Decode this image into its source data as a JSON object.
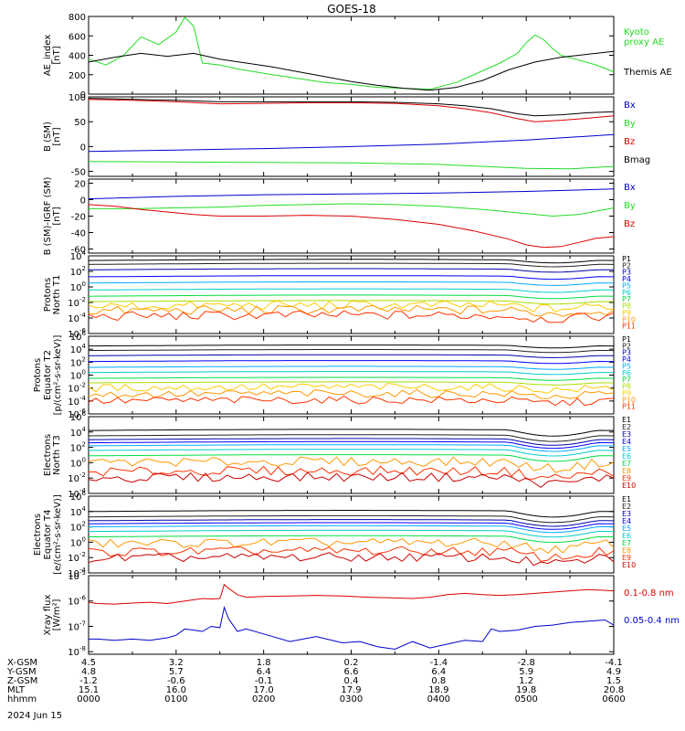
{
  "chart_data": {
    "type": "line",
    "title": "GOES-18",
    "date_label": "2024 Jun 15",
    "colors": {
      "black": "#000000",
      "green": "#22dd22",
      "blue": "#0000cc",
      "red": "#dd0000",
      "channels": [
        "#000000",
        "#222222",
        "#0000aa",
        "#0000ff",
        "#00aaff",
        "#00cccc",
        "#00dd44",
        "#aadd00",
        "#ffcc00",
        "#ff9900",
        "#ff3300",
        "#cc0000"
      ]
    },
    "x_axis": {
      "rows": [
        {
          "label": "X-GSM",
          "values": [
            "4.5",
            "3.2",
            "1.8",
            "0.2",
            "-1.4",
            "-2.8",
            "-4.1"
          ]
        },
        {
          "label": "Y-GSM",
          "values": [
            "4.8",
            "5.7",
            "6.4",
            "6.6",
            "6.4",
            "5.9",
            "4.9"
          ]
        },
        {
          "label": "Z-GSM",
          "values": [
            "-1.2",
            "-0.6",
            "-0.1",
            "0.4",
            "0.8",
            "1.2",
            "1.5"
          ]
        },
        {
          "label": "MLT",
          "values": [
            "15.1",
            "16.0",
            "17.0",
            "17.9",
            "18.9",
            "19.8",
            "20.8"
          ]
        },
        {
          "label": "hhmm",
          "values": [
            "0000",
            "0100",
            "0200",
            "0300",
            "0400",
            "0500",
            "0600"
          ]
        }
      ]
    },
    "panels": [
      {
        "id": "ae",
        "ylabel": [
          "AE_index",
          "[nT]"
        ],
        "ymin": 0,
        "ymax": 800,
        "log": false,
        "ticks": [
          {
            "v": 0,
            "t": "0"
          },
          {
            "v": 200,
            "t": "200"
          },
          {
            "v": 400,
            "t": "400"
          },
          {
            "v": 600,
            "t": "600"
          },
          {
            "v": 800,
            "t": "800"
          }
        ],
        "legend": [
          {
            "text": "Kyoto",
            "color": "#22dd22",
            "row": 0
          },
          {
            "text": "proxy AE",
            "color": "#22dd22",
            "row": 1
          },
          {
            "text": "Themis AE",
            "color": "#000000",
            "row": 4
          }
        ],
        "series": [
          {
            "name": "Kyoto proxy AE",
            "color": "#22dd22",
            "x": [
              0,
              0.2,
              0.4,
              0.6,
              0.8,
              1.0,
              1.1,
              1.2,
              1.3,
              1.5,
              1.7,
              1.9,
              2.1,
              2.4,
              2.7,
              3.0,
              3.3,
              3.6,
              3.9,
              4.2,
              4.5,
              4.7,
              4.9,
              5.0,
              5.1,
              5.2,
              5.3,
              5.4,
              5.6,
              5.8,
              6.0
            ],
            "y": [
              360,
              300,
              400,
              590,
              510,
              640,
              790,
              700,
              320,
              300,
              260,
              230,
              200,
              160,
              120,
              100,
              70,
              60,
              50,
              120,
              240,
              320,
              420,
              530,
              610,
              560,
              470,
              400,
              350,
              300,
              230
            ]
          },
          {
            "name": "Themis AE",
            "color": "#000000",
            "x": [
              0,
              0.3,
              0.6,
              0.9,
              1.2,
              1.5,
              1.8,
              2.1,
              2.4,
              2.7,
              3.0,
              3.3,
              3.6,
              3.9,
              4.2,
              4.5,
              4.8,
              5.1,
              5.4,
              5.7,
              6.0
            ],
            "y": [
              330,
              380,
              420,
              390,
              420,
              360,
              320,
              280,
              230,
              180,
              130,
              90,
              60,
              40,
              70,
              140,
              250,
              330,
              380,
              410,
              440
            ]
          }
        ]
      },
      {
        "id": "bsm",
        "ylabel": [
          "B (SM)",
          "[nT]"
        ],
        "ymin": -60,
        "ymax": 100,
        "log": false,
        "ticks": [
          {
            "v": -50,
            "t": "-50"
          },
          {
            "v": 0,
            "t": "0"
          },
          {
            "v": 50,
            "t": "50"
          },
          {
            "v": 100,
            "t": "100"
          }
        ],
        "legend": [
          {
            "text": "Bx",
            "color": "#0000cc",
            "row": 0
          },
          {
            "text": "By",
            "color": "#22dd22",
            "row": 1
          },
          {
            "text": "Bz",
            "color": "#dd0000",
            "row": 2
          },
          {
            "text": "Bmag",
            "color": "#000000",
            "row": 3
          }
        ],
        "series": [
          {
            "name": "Bmag",
            "color": "#000000",
            "x": [
              0,
              0.5,
              1.0,
              1.5,
              2.0,
              2.5,
              3.0,
              3.5,
              4.0,
              4.3,
              4.6,
              4.9,
              5.1,
              5.4,
              5.7,
              6.0
            ],
            "y": [
              97,
              95,
              93,
              90,
              90,
              90,
              90,
              89,
              86,
              82,
              76,
              66,
              62,
              64,
              68,
              70
            ]
          },
          {
            "name": "Bz",
            "color": "#dd0000",
            "x": [
              0,
              0.5,
              1.0,
              1.5,
              2.0,
              2.5,
              3.0,
              3.5,
              4.0,
              4.3,
              4.6,
              4.9,
              5.1,
              5.4,
              5.7,
              6.0
            ],
            "y": [
              95,
              93,
              90,
              86,
              87,
              88,
              88,
              87,
              82,
              76,
              68,
              56,
              50,
              53,
              57,
              62
            ]
          },
          {
            "name": "Bx",
            "color": "#0000cc",
            "x": [
              0,
              1,
              2,
              3,
              4,
              5,
              6
            ],
            "y": [
              -10,
              -7,
              -4,
              0,
              5,
              13,
              24
            ]
          },
          {
            "name": "By",
            "color": "#22dd22",
            "x": [
              0,
              1,
              2,
              3,
              4,
              4.5,
              5,
              5.5,
              6
            ],
            "y": [
              -30,
              -31,
              -32,
              -33,
              -36,
              -40,
              -44,
              -45,
              -40
            ]
          }
        ]
      },
      {
        "id": "bigrf",
        "ylabel": [
          "B (SM)-IGRF (SM)",
          "[nT]"
        ],
        "ymin": -65,
        "ymax": 25,
        "log": false,
        "ticks": [
          {
            "v": -60,
            "t": "-60"
          },
          {
            "v": -40,
            "t": "-40"
          },
          {
            "v": -20,
            "t": "-20"
          },
          {
            "v": 0,
            "t": "0"
          },
          {
            "v": 20,
            "t": "20"
          }
        ],
        "legend": [
          {
            "text": "Bx",
            "color": "#0000cc",
            "row": 0
          },
          {
            "text": "By",
            "color": "#22dd22",
            "row": 1
          },
          {
            "text": "Bz",
            "color": "#dd0000",
            "row": 2
          }
        ],
        "series": [
          {
            "name": "Bx",
            "color": "#0000cc",
            "x": [
              0,
              1,
              2,
              3,
              4,
              5,
              6
            ],
            "y": [
              1,
              4,
              6,
              7,
              8,
              10,
              13
            ]
          },
          {
            "name": "By",
            "color": "#22dd22",
            "x": [
              0,
              0.5,
              1.0,
              1.5,
              2.0,
              3.0,
              3.5,
              4.0,
              4.5,
              5.0,
              5.3,
              5.6,
              6.0
            ],
            "y": [
              -11,
              -11,
              -10,
              -9,
              -7,
              -5,
              -6,
              -8,
              -12,
              -17,
              -20,
              -18,
              -10
            ]
          },
          {
            "name": "Bz",
            "color": "#dd0000",
            "x": [
              0,
              0.3,
              0.6,
              0.9,
              1.2,
              1.5,
              2.0,
              2.5,
              3.0,
              3.5,
              4.0,
              4.4,
              4.8,
              5.0,
              5.2,
              5.4,
              5.6,
              5.8,
              6.0
            ],
            "y": [
              -6,
              -8,
              -12,
              -15,
              -18,
              -20,
              -20,
              -19,
              -20,
              -24,
              -30,
              -38,
              -48,
              -55,
              -58,
              -57,
              -52,
              -47,
              -45
            ]
          }
        ]
      },
      {
        "id": "pn",
        "ylabel": [
          "Protons",
          "North T1"
        ],
        "ymin": -6,
        "ymax": 4,
        "log": true,
        "ticks": [
          {
            "v": 4,
            "t": "10",
            "e": "4"
          },
          {
            "v": 2,
            "t": "10",
            "e": "2"
          },
          {
            "v": 0,
            "t": "10",
            "e": "0"
          },
          {
            "v": -2,
            "t": "10",
            "e": "-2"
          },
          {
            "v": -4,
            "t": "10",
            "e": "-4"
          },
          {
            "v": -6,
            "t": "10",
            "e": "-6"
          }
        ],
        "channels": [
          "P1",
          "P2",
          "P3",
          "P4",
          "P5",
          "P6",
          "P7",
          "P8",
          "P9",
          "P10",
          "P11"
        ],
        "levels": [
          3.4,
          2.9,
          2.2,
          1.3,
          0.5,
          -0.4,
          -1.2,
          -1.9,
          -2.5,
          -3.1,
          -3.8
        ]
      },
      {
        "id": "pe",
        "ylabel": [
          "Protons",
          "Equator T2",
          "[p/(cm²-s-sr-keV)]"
        ],
        "ymin": -6,
        "ymax": 6,
        "log": true,
        "ticks": [
          {
            "v": 6,
            "t": "10",
            "e": "6"
          },
          {
            "v": 4,
            "t": "10",
            "e": "4"
          },
          {
            "v": 2,
            "t": "10",
            "e": "2"
          },
          {
            "v": 0,
            "t": "10",
            "e": "0"
          },
          {
            "v": -2,
            "t": "10",
            "e": "-2"
          },
          {
            "v": -4,
            "t": "10",
            "e": "-4"
          },
          {
            "v": -6,
            "t": "10",
            "e": "-6"
          }
        ],
        "channels": [
          "P1",
          "P2",
          "P3",
          "P4",
          "P5",
          "P6",
          "P7",
          "P8",
          "P9",
          "P10",
          "P11"
        ],
        "levels": [
          4.5,
          3.8,
          3.0,
          2.1,
          1.2,
          0.4,
          -0.5,
          -1.2,
          -2.0,
          -3.0,
          -4.0
        ]
      },
      {
        "id": "en",
        "ylabel": [
          "Electrons",
          "North T3"
        ],
        "ymin": -4,
        "ymax": 6,
        "log": true,
        "ticks": [
          {
            "v": 6,
            "t": "10",
            "e": "6"
          },
          {
            "v": 4,
            "t": "10",
            "e": "4"
          },
          {
            "v": 2,
            "t": "10",
            "e": "2"
          },
          {
            "v": 0,
            "t": "10",
            "e": "0"
          },
          {
            "v": -2,
            "t": "10",
            "e": "-2"
          },
          {
            "v": -4,
            "t": "10",
            "e": "-4"
          }
        ],
        "channels": [
          "E1",
          "E2",
          "E3",
          "E4",
          "E5",
          "E6",
          "E7",
          "E8",
          "E9",
          "E10"
        ],
        "levels": [
          4.2,
          3.5,
          3.0,
          2.6,
          2.2,
          1.6,
          0.9,
          0.0,
          -1.2,
          -2.0
        ]
      },
      {
        "id": "ee",
        "ylabel": [
          "Electrons",
          "Equator T4",
          "[e/(cm²-s-sr-keV)]"
        ],
        "ymin": -4,
        "ymax": 6,
        "log": true,
        "ticks": [
          {
            "v": 6,
            "t": "10",
            "e": "6"
          },
          {
            "v": 4,
            "t": "10",
            "e": "4"
          },
          {
            "v": 2,
            "t": "10",
            "e": "2"
          },
          {
            "v": 0,
            "t": "10",
            "e": "0"
          },
          {
            "v": -2,
            "t": "10",
            "e": "-2"
          },
          {
            "v": -4,
            "t": "10",
            "e": "-4"
          }
        ],
        "channels": [
          "E1",
          "E2",
          "E3",
          "E4",
          "E5",
          "E6",
          "E7",
          "E8",
          "E9",
          "E10"
        ],
        "levels": [
          4.0,
          3.3,
          2.8,
          2.4,
          2.0,
          1.4,
          0.7,
          -0.2,
          -1.3,
          -2.1
        ]
      },
      {
        "id": "xray",
        "ylabel": [
          "Xray flux",
          "[W/m²]"
        ],
        "ymin": -8.1,
        "ymax": -5,
        "log": true,
        "ticks": [
          {
            "v": -5,
            "t": "10",
            "e": "-5"
          },
          {
            "v": -6,
            "t": "10",
            "e": "-6"
          },
          {
            "v": -7,
            "t": "10",
            "e": "-7"
          },
          {
            "v": -8,
            "t": "10",
            "e": "-8"
          }
        ],
        "legend": [
          {
            "text": "0.1-0.8 nm",
            "color": "#dd0000",
            "row": 0
          },
          {
            "text": "0.05-0.4 nm",
            "color": "#0000cc",
            "row": 1
          }
        ],
        "series": [
          {
            "name": "0.1-0.8 nm",
            "color": "#dd0000",
            "x": [
              0,
              0.1,
              0.3,
              0.5,
              0.7,
              0.9,
              1.0,
              1.1,
              1.2,
              1.3,
              1.4,
              1.5,
              1.55,
              1.6,
              1.7,
              1.8,
              2.0,
              2.3,
              2.6,
              2.9,
              3.2,
              3.5,
              3.7,
              3.9,
              4.1,
              4.3,
              4.5,
              4.7,
              4.9,
              5.1,
              5.3,
              5.5,
              5.7,
              5.9,
              6.0
            ],
            "y": [
              -6.05,
              -6.1,
              -6.12,
              -6.08,
              -6.05,
              -6.1,
              -6.05,
              -6.0,
              -5.95,
              -5.9,
              -5.92,
              -5.9,
              -5.35,
              -5.5,
              -5.75,
              -5.85,
              -5.82,
              -5.8,
              -5.78,
              -5.8,
              -5.85,
              -5.88,
              -5.9,
              -5.85,
              -5.75,
              -5.7,
              -5.75,
              -5.78,
              -5.75,
              -5.7,
              -5.65,
              -5.6,
              -5.55,
              -5.58,
              -5.6
            ]
          },
          {
            "name": "0.05-0.4 nm",
            "color": "#0000cc",
            "x": [
              0,
              0.1,
              0.3,
              0.5,
              0.7,
              0.9,
              1.0,
              1.1,
              1.2,
              1.3,
              1.4,
              1.5,
              1.55,
              1.6,
              1.7,
              1.8,
              2.0,
              2.3,
              2.6,
              2.9,
              3.1,
              3.3,
              3.5,
              3.7,
              3.9,
              4.1,
              4.3,
              4.5,
              4.6,
              4.7,
              4.9,
              5.1,
              5.3,
              5.5,
              5.7,
              5.9,
              6.0
            ],
            "y": [
              -7.5,
              -7.5,
              -7.55,
              -7.5,
              -7.55,
              -7.45,
              -7.35,
              -7.1,
              -7.15,
              -7.2,
              -7.0,
              -7.05,
              -6.25,
              -6.7,
              -7.2,
              -7.1,
              -7.3,
              -7.6,
              -7.4,
              -7.65,
              -7.6,
              -7.8,
              -7.9,
              -7.6,
              -7.85,
              -7.7,
              -7.55,
              -7.6,
              -7.1,
              -7.2,
              -7.15,
              -7.0,
              -6.95,
              -6.85,
              -6.8,
              -6.75,
              -6.95
            ]
          }
        ]
      }
    ]
  }
}
